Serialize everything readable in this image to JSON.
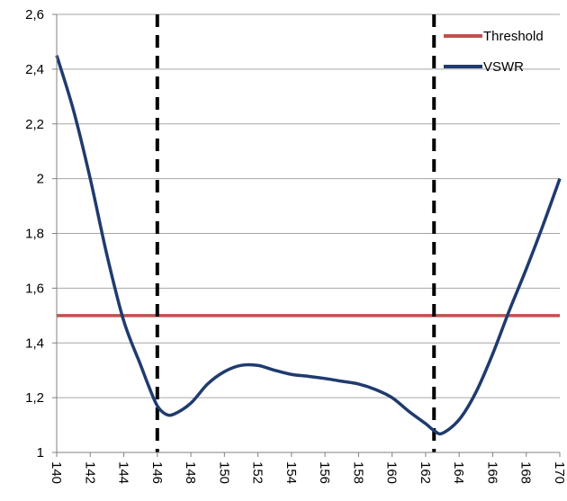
{
  "chart_data": {
    "type": "line",
    "title": "",
    "xlabel": "",
    "ylabel": "",
    "xlim": [
      140,
      170
    ],
    "ylim": [
      1,
      2.6
    ],
    "x_ticks": [
      "140",
      "142",
      "144",
      "146",
      "148",
      "150",
      "152",
      "154",
      "156",
      "158",
      "160",
      "162",
      "164",
      "166",
      "168",
      "170"
    ],
    "y_ticks": [
      {
        "value": 1,
        "label": "1"
      },
      {
        "value": 1.2,
        "label": "1,2"
      },
      {
        "value": 1.4,
        "label": "1,4"
      },
      {
        "value": 1.6,
        "label": "1,6"
      },
      {
        "value": 1.8,
        "label": "1,8"
      },
      {
        "value": 2,
        "label": "2"
      },
      {
        "value": 2.2,
        "label": "2,2"
      },
      {
        "value": 2.4,
        "label": "2,4"
      },
      {
        "value": 2.6,
        "label": "2,6"
      }
    ],
    "grid": "horizontal",
    "legend_position": "top-right",
    "series": [
      {
        "name": "Threshold",
        "color": "#c0504d",
        "x": [
          140,
          170
        ],
        "y": [
          1.5,
          1.5
        ]
      },
      {
        "name": "VSWR",
        "color": "#1f3b6e",
        "x": [
          140,
          141,
          142,
          143,
          144,
          145,
          145.5,
          146,
          146.5,
          147,
          148,
          149,
          150,
          151,
          152,
          153,
          154,
          155,
          156,
          157,
          158,
          159,
          160,
          161,
          162,
          162.5,
          163,
          164,
          165,
          166,
          167,
          168,
          169,
          170
        ],
        "y": [
          2.45,
          2.25,
          2.0,
          1.72,
          1.48,
          1.32,
          1.24,
          1.17,
          1.14,
          1.14,
          1.18,
          1.25,
          1.295,
          1.318,
          1.318,
          1.3,
          1.285,
          1.278,
          1.27,
          1.26,
          1.25,
          1.23,
          1.2,
          1.15,
          1.105,
          1.08,
          1.07,
          1.12,
          1.22,
          1.36,
          1.52,
          1.67,
          1.83,
          2.0
        ]
      }
    ],
    "vertical_lines": [
      {
        "x": 146,
        "style": "dashed",
        "color": "#000000"
      },
      {
        "x": 162.5,
        "style": "dashed",
        "color": "#000000"
      }
    ]
  }
}
